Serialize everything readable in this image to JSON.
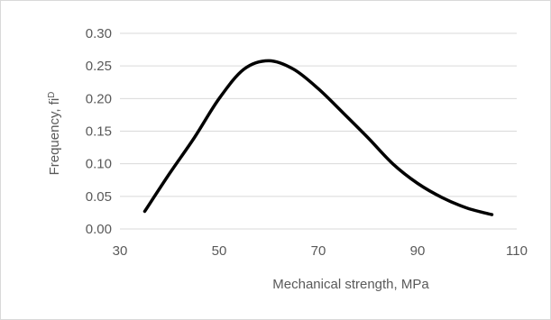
{
  "chart_data": {
    "type": "line",
    "title": "",
    "xlabel": "Mechanical strength, MPa",
    "ylabel": "Frequency, fi",
    "ylabel_superscript": "D",
    "xlim": [
      30,
      110
    ],
    "ylim": [
      0,
      0.3
    ],
    "xticks": [
      "30",
      "50",
      "70",
      "90",
      "110"
    ],
    "yticks": [
      "0.00",
      "0.05",
      "0.10",
      "0.15",
      "0.20",
      "0.25",
      "0.30"
    ],
    "grid": "horizontal",
    "legend": "none",
    "color": "#000000",
    "series": [
      {
        "x": [
          35,
          40,
          45,
          50,
          55,
          60,
          65,
          70,
          75,
          80,
          85,
          90,
          95,
          100,
          105
        ],
        "y": [
          0.027,
          0.085,
          0.14,
          0.2,
          0.245,
          0.258,
          0.245,
          0.215,
          0.178,
          0.14,
          0.1,
          0.07,
          0.048,
          0.032,
          0.022
        ]
      }
    ]
  }
}
